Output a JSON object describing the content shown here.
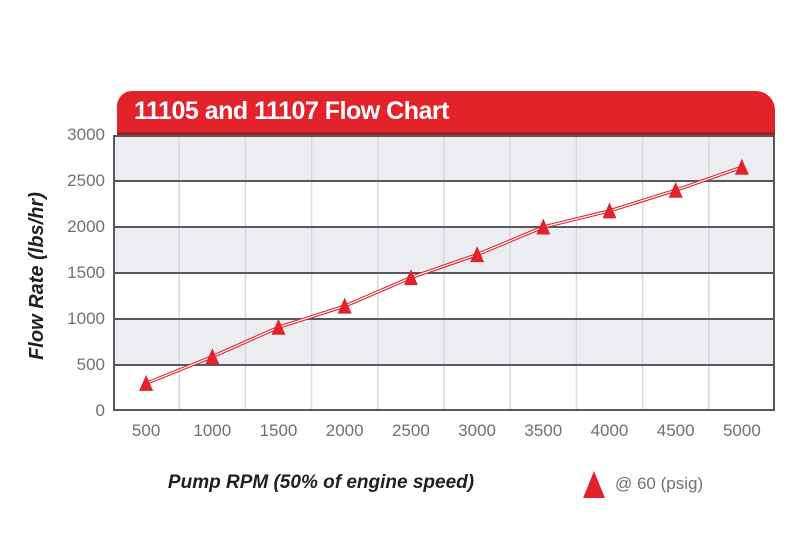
{
  "chart": {
    "title": "11105 and 11107 Flow Chart",
    "y_axis_title": "Flow Rate (lbs/hr)",
    "x_axis_title": "Pump RPM (50% of engine speed)",
    "legend_label": "@ 60 (psig)"
  },
  "chart_data": {
    "type": "line",
    "title": "11105 and 11107 Flow Chart",
    "xlabel": "Pump RPM (50% of engine speed)",
    "ylabel": "Flow Rate (lbs/hr)",
    "categories": [
      500,
      1000,
      1500,
      2000,
      2500,
      3000,
      3500,
      4000,
      4500,
      5000
    ],
    "series": [
      {
        "name": "@ 60 (psig)",
        "marker": "triangle",
        "values": [
          300,
          590,
          910,
          1140,
          1450,
          1700,
          2000,
          2175,
          2400,
          2650
        ]
      }
    ],
    "ylim": [
      0,
      3000
    ],
    "ytick_step": 500,
    "grid": "alternating-horizontal-bands",
    "legend_position": "bottom-right"
  },
  "colors": {
    "accent_red": "#e2232b",
    "banner_dark_red": "#a41e22",
    "band_gray": "#ebedf0",
    "band_white": "#ffffff",
    "grid_dark": "#57585b",
    "grid_light": "#d6d8db",
    "tick_text": "#6f7073",
    "axis_title_text": "#231f20",
    "title_text": "#ffffff"
  }
}
